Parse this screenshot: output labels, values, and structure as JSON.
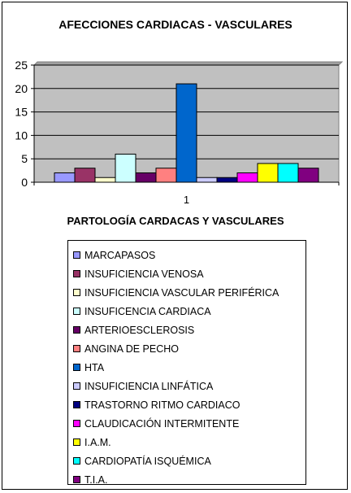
{
  "chart_data": {
    "type": "bar",
    "title": "AFECCIONES CARDIACAS - VASCULARES",
    "xlabel": "PARTOLOGÍA CARDACAS Y VASCULARES",
    "ylabel": "",
    "categories": [
      "1"
    ],
    "ylim": [
      0,
      25
    ],
    "yticks": [
      0,
      5,
      10,
      15,
      20,
      25
    ],
    "grid": true,
    "legend_position": "bottom",
    "plot_background": "#c0c0c0",
    "series": [
      {
        "name": "MARCAPASOS",
        "values": [
          2
        ],
        "color": "#9999ff"
      },
      {
        "name": "INSUFICIENCIA VENOSA",
        "values": [
          3
        ],
        "color": "#993366"
      },
      {
        "name": "INSUFICIENCIA VASCULAR PERIFÉRICA",
        "values": [
          1
        ],
        "color": "#ffffcc"
      },
      {
        "name": "INSUFICENCIA CARDIACA",
        "values": [
          6
        ],
        "color": "#ccffff"
      },
      {
        "name": "ARTERIOESCLEROSIS",
        "values": [
          2
        ],
        "color": "#660066"
      },
      {
        "name": "ANGINA DE PECHO",
        "values": [
          3
        ],
        "color": "#ff8080"
      },
      {
        "name": "HTA",
        "values": [
          21
        ],
        "color": "#0066cc"
      },
      {
        "name": "INSUFICIENCIA LINFÁTICA",
        "values": [
          1
        ],
        "color": "#ccccff"
      },
      {
        "name": "TRASTORNO RITMO CARDIACO",
        "values": [
          1
        ],
        "color": "#000080"
      },
      {
        "name": "CLAUDICACIÓN INTERMITENTE",
        "values": [
          2
        ],
        "color": "#ff00ff"
      },
      {
        "name": "I.A.M.",
        "values": [
          4
        ],
        "color": "#ffff00"
      },
      {
        "name": "CARDIOPATÍA ISQUÉMICA",
        "values": [
          4
        ],
        "color": "#00ffff"
      },
      {
        "name": "T.I.A.",
        "values": [
          3
        ],
        "color": "#800080"
      }
    ]
  }
}
